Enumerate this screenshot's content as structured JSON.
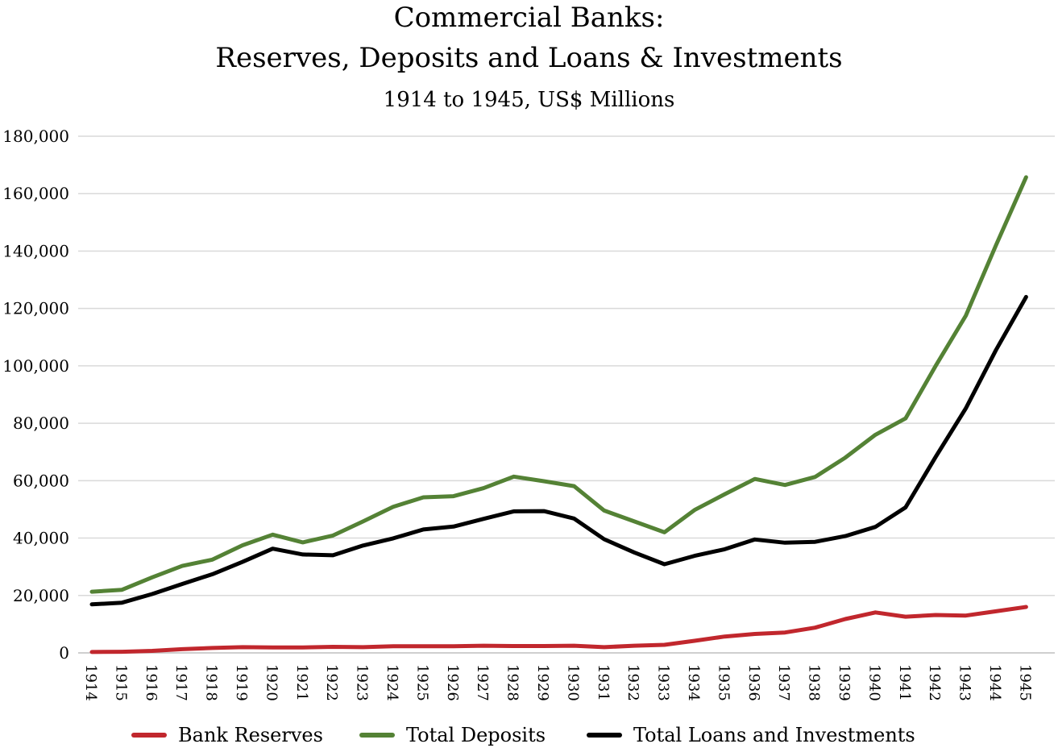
{
  "chart_data": {
    "type": "line",
    "title": "Commercial Banks:",
    "title_line2": "Reserves, Deposits and Loans & Investments",
    "subtitle": "1914 to 1945, US$ Millions",
    "xlabel": "",
    "ylabel": "",
    "x": [
      "1914",
      "1915",
      "1916",
      "1917",
      "1918",
      "1919",
      "1920",
      "1921",
      "1922",
      "1923",
      "1924",
      "1925",
      "1926",
      "1927",
      "1928",
      "1929",
      "1930",
      "1931",
      "1932",
      "1933",
      "1934",
      "1935",
      "1936",
      "1937",
      "1938",
      "1939",
      "1940",
      "1941",
      "1942",
      "1943",
      "1944",
      "1945"
    ],
    "ylim": [
      0,
      180000
    ],
    "yticks": [
      0,
      20000,
      40000,
      60000,
      80000,
      100000,
      120000,
      140000,
      160000,
      180000
    ],
    "ytick_labels": [
      "0",
      "20,000",
      "40,000",
      "60,000",
      "80,000",
      "100,000",
      "120,000",
      "140,000",
      "160,000",
      "180,000"
    ],
    "grid": true,
    "legend_position": "bottom",
    "series": [
      {
        "name": "Bank Reserves",
        "color": "#c1272d",
        "values": [
          300,
          400,
          700,
          1300,
          1700,
          2000,
          1900,
          1900,
          2100,
          2000,
          2300,
          2300,
          2300,
          2500,
          2400,
          2400,
          2500,
          2000,
          2500,
          2800,
          4200,
          5700,
          6600,
          7100,
          8800,
          11800,
          14100,
          12600,
          13200,
          13000,
          14500,
          16000
        ]
      },
      {
        "name": "Total Deposits",
        "color": "#548235",
        "values": [
          21300,
          22000,
          26300,
          30300,
          32500,
          37500,
          41200,
          38500,
          40900,
          45800,
          50900,
          54200,
          54600,
          57400,
          61400,
          59800,
          58100,
          49600,
          45800,
          42000,
          49800,
          55300,
          60600,
          58500,
          61300,
          68000,
          76000,
          81700,
          100000,
          117500,
          142000,
          165700
        ]
      },
      {
        "name": "Total Loans and Investments",
        "color": "#000000",
        "values": [
          16900,
          17500,
          20500,
          24000,
          27400,
          31700,
          36300,
          34300,
          34000,
          37400,
          39900,
          43000,
          44000,
          46700,
          49300,
          49400,
          46800,
          39600,
          35000,
          30900,
          33800,
          36100,
          39500,
          38400,
          38700,
          40700,
          43900,
          50700,
          68300,
          85200,
          105500,
          124000
        ]
      }
    ]
  }
}
